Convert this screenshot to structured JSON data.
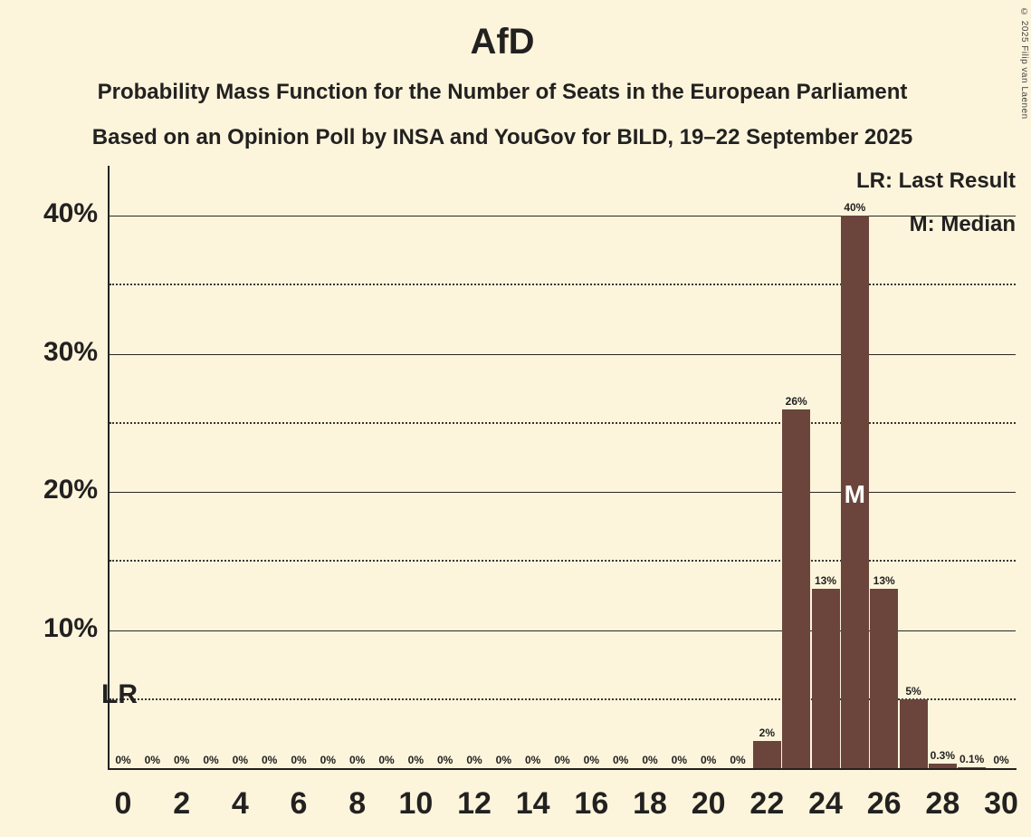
{
  "title": "AfD",
  "subtitle1": "Probability Mass Function for the Number of Seats in the European Parliament",
  "subtitle2": "Based on an Opinion Poll by INSA and YouGov for BILD, 19–22 September 2025",
  "copyright": "© 2025 Filip van Laenen",
  "legend": {
    "lr": "LR: Last Result",
    "m": "M: Median"
  },
  "annotations": {
    "lr_label": "LR",
    "median_label": "M",
    "median_seat": 25
  },
  "colors": {
    "background": "#fcf5dc",
    "bar": "#6b453c",
    "text": "#232120",
    "median_text": "#ffffff"
  },
  "chart_data": {
    "type": "bar",
    "title": "AfD",
    "x": [
      0,
      1,
      2,
      3,
      4,
      5,
      6,
      7,
      8,
      9,
      10,
      11,
      12,
      13,
      14,
      15,
      16,
      17,
      18,
      19,
      20,
      21,
      22,
      23,
      24,
      25,
      26,
      27,
      28,
      29,
      30
    ],
    "values": [
      0,
      0,
      0,
      0,
      0,
      0,
      0,
      0,
      0,
      0,
      0,
      0,
      0,
      0,
      0,
      0,
      0,
      0,
      0,
      0,
      0,
      0,
      2,
      26,
      13,
      40,
      13,
      5,
      0.3,
      0.1,
      0
    ],
    "bar_labels": [
      "0%",
      "0%",
      "0%",
      "0%",
      "0%",
      "0%",
      "0%",
      "0%",
      "0%",
      "0%",
      "0%",
      "0%",
      "0%",
      "0%",
      "0%",
      "0%",
      "0%",
      "0%",
      "0%",
      "0%",
      "0%",
      "0%",
      "2%",
      "26%",
      "13%",
      "40%",
      "13%",
      "5%",
      "0.3%",
      "0.1%",
      "0%"
    ],
    "x_tick_seats": [
      0,
      2,
      4,
      6,
      8,
      10,
      12,
      14,
      16,
      18,
      20,
      22,
      24,
      26,
      28,
      30
    ],
    "y_ticks": [
      {
        "v": 10,
        "label": "10%"
      },
      {
        "v": 20,
        "label": "20%"
      },
      {
        "v": 30,
        "label": "30%"
      },
      {
        "v": 40,
        "label": "40%"
      }
    ],
    "solid_gridlines": [
      10,
      20,
      30,
      40
    ],
    "dotted_gridlines": [
      5,
      15,
      25,
      35
    ],
    "ylim": [
      0,
      43.6
    ],
    "legend_position": "top-right",
    "grid": true
  }
}
